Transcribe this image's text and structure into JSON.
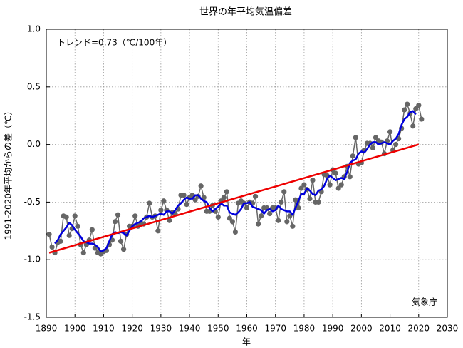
{
  "chart_data": {
    "type": "line",
    "title": "世界の年平均気温偏差",
    "annotation": "トレンド=0.73（℃/100年）",
    "source": "気象庁",
    "xlabel": "年",
    "ylabel": "1991-2020年平均からの差（℃）",
    "xlim": [
      1890,
      2030
    ],
    "ylim": [
      -1.5,
      1.0
    ],
    "xticks": [
      1890,
      1900,
      1910,
      1920,
      1930,
      1940,
      1950,
      1960,
      1970,
      1980,
      1990,
      2000,
      2010,
      2020,
      2030
    ],
    "yticks": [
      {
        "value": -1.5,
        "label": "-1.5"
      },
      {
        "value": -1.0,
        "label": "-1.0"
      },
      -0.5,
      {
        "value": 0.0,
        "label": "0.0"
      },
      0.5,
      {
        "value": 1.0,
        "label": "1.0"
      }
    ],
    "grid": true,
    "x": [
      1891,
      1892,
      1893,
      1894,
      1895,
      1896,
      1897,
      1898,
      1899,
      1900,
      1901,
      1902,
      1903,
      1904,
      1905,
      1906,
      1907,
      1908,
      1909,
      1910,
      1911,
      1912,
      1913,
      1914,
      1915,
      1916,
      1917,
      1918,
      1919,
      1920,
      1921,
      1922,
      1923,
      1924,
      1925,
      1926,
      1927,
      1928,
      1929,
      1930,
      1931,
      1932,
      1933,
      1934,
      1935,
      1936,
      1937,
      1938,
      1939,
      1940,
      1941,
      1942,
      1943,
      1944,
      1945,
      1946,
      1947,
      1948,
      1949,
      1950,
      1951,
      1952,
      1953,
      1954,
      1955,
      1956,
      1957,
      1958,
      1959,
      1960,
      1961,
      1962,
      1963,
      1964,
      1965,
      1966,
      1967,
      1968,
      1969,
      1970,
      1971,
      1972,
      1973,
      1974,
      1975,
      1976,
      1977,
      1978,
      1979,
      1980,
      1981,
      1982,
      1983,
      1984,
      1985,
      1986,
      1987,
      1988,
      1989,
      1990,
      1991,
      1992,
      1993,
      1994,
      1995,
      1996,
      1997,
      1998,
      1999,
      2000,
      2001,
      2002,
      2003,
      2004,
      2005,
      2006,
      2007,
      2008,
      2009,
      2010,
      2011,
      2012,
      2013,
      2014,
      2015,
      2016,
      2017,
      2018,
      2019,
      2020,
      2021
    ],
    "series": [
      {
        "color": "#666666",
        "markers": true,
        "values": [
          -0.78,
          -0.89,
          -0.94,
          -0.85,
          -0.84,
          -0.62,
          -0.63,
          -0.79,
          -0.73,
          -0.62,
          -0.71,
          -0.87,
          -0.94,
          -0.87,
          -0.83,
          -0.74,
          -0.9,
          -0.94,
          -0.95,
          -0.93,
          -0.92,
          -0.87,
          -0.83,
          -0.67,
          -0.61,
          -0.84,
          -0.91,
          -0.78,
          -0.71,
          -0.71,
          -0.62,
          -0.71,
          -0.68,
          -0.69,
          -0.63,
          -0.51,
          -0.63,
          -0.62,
          -0.75,
          -0.57,
          -0.49,
          -0.57,
          -0.66,
          -0.59,
          -0.6,
          -0.56,
          -0.44,
          -0.44,
          -0.52,
          -0.46,
          -0.44,
          -0.48,
          -0.45,
          -0.36,
          -0.46,
          -0.58,
          -0.58,
          -0.53,
          -0.58,
          -0.63,
          -0.49,
          -0.46,
          -0.41,
          -0.64,
          -0.67,
          -0.76,
          -0.51,
          -0.49,
          -0.51,
          -0.55,
          -0.5,
          -0.51,
          -0.45,
          -0.69,
          -0.62,
          -0.55,
          -0.55,
          -0.6,
          -0.55,
          -0.55,
          -0.66,
          -0.5,
          -0.41,
          -0.67,
          -0.62,
          -0.71,
          -0.48,
          -0.55,
          -0.38,
          -0.35,
          -0.39,
          -0.47,
          -0.31,
          -0.5,
          -0.5,
          -0.41,
          -0.26,
          -0.27,
          -0.35,
          -0.22,
          -0.25,
          -0.38,
          -0.35,
          -0.28,
          -0.19,
          -0.28,
          -0.1,
          0.06,
          -0.17,
          -0.16,
          -0.05,
          0.01,
          0.01,
          -0.03,
          0.06,
          0.03,
          0.02,
          -0.08,
          0.03,
          0.11,
          -0.05,
          0.0,
          0.05,
          0.14,
          0.3,
          0.35,
          0.27,
          0.16,
          0.31,
          0.34,
          0.22
        ]
      },
      {
        "color": "#0000dd",
        "markers": false,
        "values": [
          null,
          null,
          -0.86,
          -0.83,
          -0.78,
          -0.75,
          -0.72,
          -0.68,
          -0.7,
          -0.74,
          -0.77,
          -0.8,
          -0.84,
          -0.85,
          -0.86,
          -0.86,
          -0.87,
          -0.89,
          -0.93,
          -0.92,
          -0.9,
          -0.84,
          -0.78,
          -0.76,
          -0.77,
          -0.76,
          -0.77,
          -0.79,
          -0.75,
          -0.71,
          -0.69,
          -0.68,
          -0.67,
          -0.64,
          -0.63,
          -0.62,
          -0.63,
          -0.62,
          -0.61,
          -0.6,
          -0.61,
          -0.58,
          -0.58,
          -0.6,
          -0.57,
          -0.53,
          -0.51,
          -0.48,
          -0.46,
          -0.47,
          -0.47,
          -0.44,
          -0.44,
          -0.47,
          -0.49,
          -0.5,
          -0.55,
          -0.58,
          -0.56,
          -0.54,
          -0.51,
          -0.53,
          -0.53,
          -0.59,
          -0.6,
          -0.61,
          -0.59,
          -0.56,
          -0.51,
          -0.51,
          -0.5,
          -0.54,
          -0.55,
          -0.56,
          -0.57,
          -0.6,
          -0.57,
          -0.56,
          -0.58,
          -0.57,
          -0.53,
          -0.56,
          -0.57,
          -0.58,
          -0.58,
          -0.61,
          -0.55,
          -0.49,
          -0.43,
          -0.43,
          -0.38,
          -0.4,
          -0.43,
          -0.44,
          -0.4,
          -0.39,
          -0.36,
          -0.3,
          -0.27,
          -0.29,
          -0.31,
          -0.3,
          -0.29,
          -0.3,
          -0.24,
          -0.16,
          -0.14,
          -0.13,
          -0.08,
          -0.06,
          -0.07,
          -0.04,
          0.0,
          0.02,
          0.02,
          0.0,
          0.01,
          0.02,
          0.01,
          0.0,
          0.03,
          0.05,
          0.09,
          0.17,
          0.22,
          0.24,
          0.28,
          0.29,
          0.26,
          null,
          null
        ]
      },
      {
        "color": "#ee0000",
        "markers": false,
        "x": [
          1891,
          2020
        ],
        "values": [
          -0.94,
          0.0
        ]
      }
    ]
  }
}
